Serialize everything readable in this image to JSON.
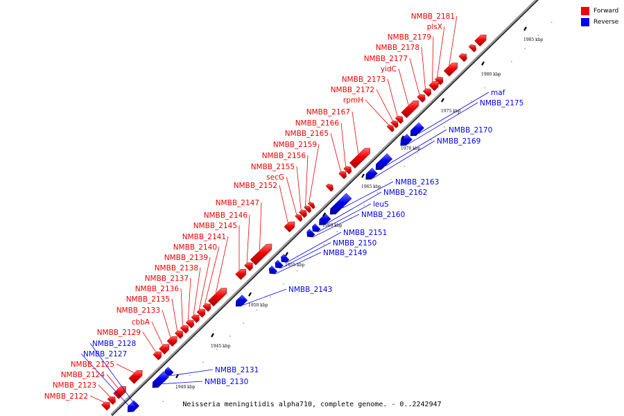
{
  "caption": "Neisseria meningitidis alpha710, complete genome. - 0..2242947",
  "legend": [
    {
      "label": "Forward",
      "color": "#ee0000"
    },
    {
      "label": "Reverse",
      "color": "#0000ee"
    }
  ],
  "colors": {
    "forward": "#ee0000",
    "reverse": "#0000ee",
    "axis": "#9a9a9a"
  },
  "ticks": [
    "1940 kbp",
    "1945 kbp",
    "1950 kbp",
    "1955 kbp",
    "1960 kbp",
    "1965 kbp",
    "1970 kbp",
    "1975 kbp",
    "1980 kbp",
    "1985 kbp"
  ],
  "forward_genes": [
    "NMBB_2181",
    "plsX",
    "NMBB_2179",
    "NMBB_2178",
    "NMBB_2177",
    "yidC",
    "NMBB_2173",
    "NMBB_2172",
    "rpmH",
    "NMBB_2167",
    "NMBB_2166",
    "NMBB_2165",
    "NMBB_2159",
    "NMBB_2156",
    "NMBB_2155",
    "secG",
    "NMBB_2152",
    "NMBB_2147",
    "NMBB_2146",
    "NMBB_2145",
    "NMBB_2141",
    "NMBB_2140",
    "NMBB_2139",
    "NMBB_2138",
    "NMBB_2137",
    "NMBB_2136",
    "NMBB_2135",
    "NMBB_2133",
    "cbbA",
    "NMBB_2129",
    "NMBB_2125",
    "NMBB_2124",
    "NMBB_2123",
    "NMBB_2122"
  ],
  "reverse_genes": [
    "maf",
    "NMBB_2175",
    "NMBB_2170",
    "NMBB_2169",
    "NMBB_2163",
    "NMBB_2162",
    "leuS",
    "NMBB_2160",
    "NMBB_2151",
    "NMBB_2150",
    "NMBB_2149",
    "NMBB_2143",
    "NMBB_2131",
    "NMBB_2130",
    "NMBB_2128",
    "NMBB_2127"
  ]
}
